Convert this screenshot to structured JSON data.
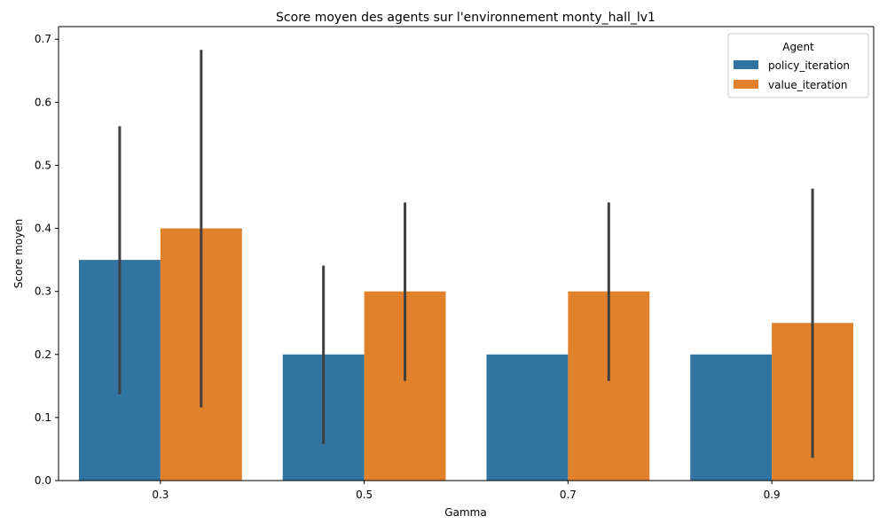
{
  "chart_data": {
    "type": "bar",
    "title": "Score moyen des agents sur l'environnement monty_hall_lv1",
    "xlabel": "Gamma",
    "ylabel": "Score moyen",
    "categories": [
      "0.3",
      "0.5",
      "0.7",
      "0.9"
    ],
    "ylim": [
      0,
      0.72
    ],
    "yticks": [
      0.0,
      0.1,
      0.2,
      0.3,
      0.4,
      0.5,
      0.6,
      0.7
    ],
    "ytick_labels": [
      "0.0",
      "0.1",
      "0.2",
      "0.3",
      "0.4",
      "0.5",
      "0.6",
      "0.7"
    ],
    "grid": false,
    "legend": {
      "title": "Agent",
      "placement": "top-right"
    },
    "series": [
      {
        "name": "policy_iteration",
        "color": "#3274a1",
        "values": [
          0.35,
          0.2,
          0.2,
          0.2
        ],
        "error_low": [
          0.137,
          0.058,
          null,
          null
        ],
        "error_high": [
          0.562,
          0.341,
          null,
          null
        ]
      },
      {
        "name": "value_iteration",
        "color": "#e1812c",
        "values": [
          0.4,
          0.3,
          0.3,
          0.25
        ],
        "error_low": [
          0.116,
          0.158,
          0.158,
          0.036
        ],
        "error_high": [
          0.683,
          0.441,
          0.441,
          0.463
        ]
      }
    ],
    "error_bar_color": "#3f3f3f"
  }
}
